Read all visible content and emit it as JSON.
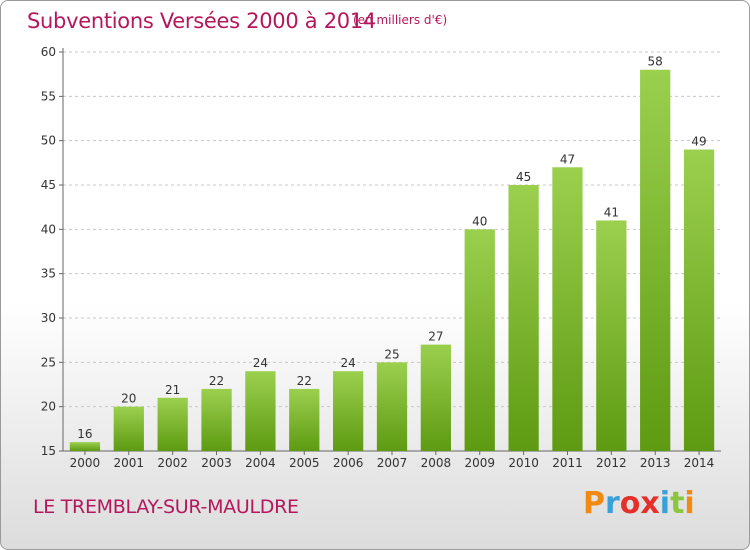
{
  "header": {
    "title": "Subventions Versées 2000 à 2014",
    "unit": "(en milliers d'€)"
  },
  "footer": {
    "commune": "LE TREMBLAY-SUR-MAULDRE",
    "logo": "Proxiti"
  },
  "colors": {
    "title": "#b5175c",
    "bar_light": "#9bd04f",
    "bar_dark": "#5e9a12",
    "logo_letters": [
      "#f08a12",
      "#3aa0d8",
      "#e5302a",
      "#e5302a",
      "#3aa0d8",
      "#8cc63f",
      "#f08a12"
    ]
  },
  "chart_data": {
    "type": "bar",
    "title": "Subventions Versées 2000 à 2014",
    "subtitle": "(en milliers d'€)",
    "categories": [
      "2000",
      "2001",
      "2002",
      "2003",
      "2004",
      "2005",
      "2006",
      "2007",
      "2008",
      "2009",
      "2010",
      "2011",
      "2012",
      "2013",
      "2014"
    ],
    "values": [
      16,
      20,
      21,
      22,
      24,
      22,
      24,
      25,
      27,
      40,
      45,
      47,
      41,
      58,
      49
    ],
    "ylim": [
      15,
      60
    ],
    "yticks": [
      15,
      20,
      25,
      30,
      35,
      40,
      45,
      50,
      55,
      60
    ],
    "grid": "horizontal dashed"
  }
}
